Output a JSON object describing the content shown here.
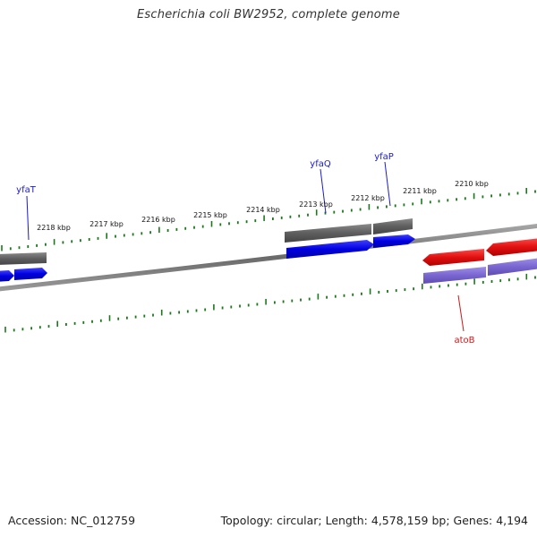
{
  "title": "Escherichia coli BW2952, complete genome",
  "footer": {
    "accession": "Accession: NC_012759",
    "topology": "Topology: circular; Length: 4,578,159 bp; Genes: 4,194"
  },
  "colors": {
    "backbone": "#808080",
    "ticks": "#1a7a1a",
    "forward_cds": "#0000e0",
    "forward_gene": "#6a6a6a",
    "reverse_cds": "#7a66d0",
    "reverse_gene": "#e01010",
    "forward_label": "#1a1acc",
    "reverse_label": "#cc1a1a"
  },
  "ruler": {
    "unit": "kbp",
    "labels": [
      "2218 kbp",
      "2217 kbp",
      "2216 kbp",
      "2215 kbp",
      "2214 kbp",
      "2213 kbp",
      "2212 kbp",
      "2211 kbp",
      "2210 kbp"
    ]
  },
  "genes": [
    {
      "name": "yfaT",
      "strand": "forward"
    },
    {
      "name": "yfaQ",
      "strand": "forward"
    },
    {
      "name": "yfaP",
      "strand": "forward"
    },
    {
      "name": "atoB",
      "strand": "reverse"
    }
  ]
}
